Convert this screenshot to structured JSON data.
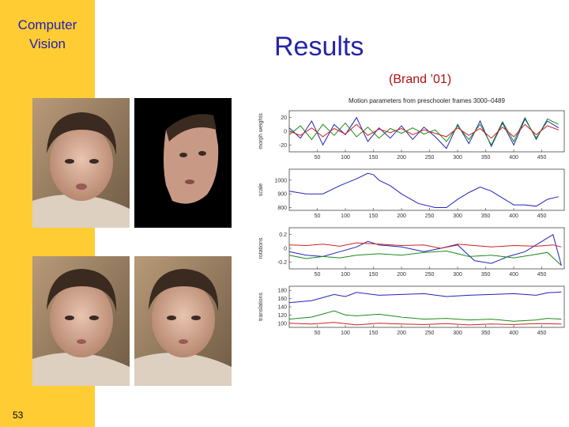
{
  "slide": {
    "course_title": "Computer\nVision",
    "title": "Results",
    "subtitle": "(Brand ’01)",
    "page_number": "53"
  },
  "colors": {
    "sidebar": "#ffcc33",
    "title": "#2424a8",
    "subtitle": "#b01010",
    "blue": "#2222bb",
    "green": "#1a8a1a",
    "red": "#cc2222"
  },
  "photos": [
    {
      "name": "face-original-top"
    },
    {
      "name": "face-masked-model"
    },
    {
      "name": "face-original-bottom"
    },
    {
      "name": "face-reconstructed"
    }
  ],
  "chart_data": [
    {
      "type": "line",
      "title": "Motion parameters from preschooler frames 3000–0489",
      "ylabel": "morph weights",
      "xlim": [
        0,
        490
      ],
      "ylim": [
        -30,
        30
      ],
      "xticks": [
        50,
        100,
        150,
        200,
        250,
        300,
        350,
        400,
        450
      ],
      "yticks": [
        20,
        0,
        -20
      ],
      "series": [
        {
          "color": "blue",
          "x": [
            0,
            20,
            40,
            60,
            80,
            100,
            120,
            140,
            160,
            180,
            200,
            220,
            240,
            260,
            280,
            300,
            320,
            340,
            360,
            380,
            400,
            420,
            440,
            460,
            480
          ],
          "y": [
            5,
            -10,
            15,
            -20,
            10,
            -5,
            20,
            -15,
            5,
            -10,
            8,
            -12,
            6,
            -8,
            -25,
            10,
            -18,
            15,
            -22,
            12,
            -20,
            18,
            -10,
            15,
            5
          ]
        },
        {
          "color": "green",
          "x": [
            0,
            20,
            40,
            60,
            80,
            100,
            120,
            140,
            160,
            180,
            200,
            220,
            240,
            260,
            280,
            300,
            320,
            340,
            360,
            380,
            400,
            420,
            440,
            460,
            480
          ],
          "y": [
            -5,
            8,
            -12,
            10,
            -6,
            12,
            -8,
            6,
            -10,
            4,
            -3,
            5,
            -4,
            2,
            -15,
            8,
            -12,
            10,
            -20,
            14,
            -15,
            20,
            -12,
            18,
            10
          ]
        },
        {
          "color": "red",
          "x": [
            0,
            20,
            40,
            60,
            80,
            100,
            120,
            140,
            160,
            180,
            200,
            220,
            240,
            260,
            280,
            300,
            320,
            340,
            360,
            380,
            400,
            420,
            440,
            460,
            480
          ],
          "y": [
            0,
            -6,
            5,
            -8,
            4,
            -4,
            10,
            -6,
            3,
            -2,
            4,
            -5,
            2,
            -3,
            -8,
            5,
            -6,
            4,
            -10,
            6,
            -8,
            10,
            -5,
            8,
            2
          ]
        }
      ]
    },
    {
      "type": "line",
      "ylabel": "scale",
      "xlim": [
        0,
        490
      ],
      "ylim": [
        780,
        1080
      ],
      "xticks": [
        50,
        100,
        150,
        200,
        250,
        300,
        350,
        400,
        450
      ],
      "yticks": [
        1000,
        900,
        800
      ],
      "series": [
        {
          "color": "blue",
          "x": [
            0,
            30,
            60,
            90,
            120,
            140,
            150,
            160,
            180,
            200,
            230,
            260,
            280,
            300,
            320,
            340,
            360,
            380,
            400,
            420,
            440,
            460,
            480
          ],
          "y": [
            920,
            900,
            900,
            960,
            1010,
            1050,
            1040,
            1000,
            960,
            900,
            830,
            800,
            800,
            860,
            910,
            950,
            920,
            870,
            820,
            820,
            810,
            860,
            880
          ]
        }
      ]
    },
    {
      "type": "line",
      "ylabel": "rotations",
      "xlim": [
        0,
        490
      ],
      "ylim": [
        -0.3,
        0.3
      ],
      "xticks": [
        50,
        100,
        150,
        200,
        250,
        300,
        350,
        400,
        450
      ],
      "yticks": [
        0.2,
        0,
        -0.2
      ],
      "series": [
        {
          "color": "blue",
          "x": [
            0,
            30,
            60,
            90,
            120,
            140,
            160,
            200,
            240,
            270,
            300,
            330,
            360,
            390,
            420,
            450,
            470,
            485
          ],
          "y": [
            -0.05,
            -0.1,
            -0.12,
            -0.05,
            0.02,
            0.1,
            0.05,
            0.02,
            -0.05,
            0,
            0.05,
            -0.18,
            -0.22,
            -0.12,
            -0.05,
            0.1,
            0.2,
            -0.25
          ]
        },
        {
          "color": "green",
          "x": [
            0,
            30,
            60,
            90,
            120,
            160,
            200,
            240,
            280,
            300,
            320,
            360,
            400,
            430,
            460,
            485
          ],
          "y": [
            -0.1,
            -0.15,
            -0.12,
            -0.14,
            -0.1,
            -0.08,
            -0.1,
            -0.06,
            -0.04,
            -0.08,
            -0.12,
            -0.1,
            -0.14,
            -0.1,
            -0.06,
            -0.25
          ]
        },
        {
          "color": "red",
          "x": [
            0,
            30,
            60,
            90,
            120,
            160,
            200,
            240,
            270,
            300,
            330,
            360,
            400,
            440,
            470,
            485
          ],
          "y": [
            0.05,
            0.04,
            0.06,
            0.03,
            0.08,
            0.06,
            0.04,
            0.05,
            0,
            0.06,
            0.04,
            0.02,
            0.04,
            0.03,
            0.05,
            0.02
          ]
        }
      ]
    },
    {
      "type": "line",
      "ylabel": "translations",
      "xlim": [
        0,
        490
      ],
      "ylim": [
        90,
        190
      ],
      "xticks": [
        50,
        100,
        150,
        200,
        250,
        300,
        350,
        400,
        450
      ],
      "yticks": [
        180,
        160,
        140,
        120,
        100
      ],
      "series": [
        {
          "color": "blue",
          "x": [
            0,
            40,
            80,
            100,
            120,
            160,
            200,
            240,
            280,
            320,
            360,
            400,
            440,
            460,
            485
          ],
          "y": [
            150,
            155,
            170,
            165,
            175,
            168,
            170,
            172,
            165,
            168,
            170,
            172,
            168,
            174,
            176
          ]
        },
        {
          "color": "green",
          "x": [
            0,
            40,
            80,
            100,
            120,
            160,
            200,
            240,
            280,
            320,
            360,
            400,
            440,
            460,
            485
          ],
          "y": [
            110,
            115,
            130,
            120,
            118,
            122,
            115,
            110,
            112,
            108,
            110,
            105,
            108,
            112,
            110
          ]
        },
        {
          "color": "red",
          "x": [
            0,
            40,
            80,
            120,
            160,
            200,
            240,
            280,
            320,
            360,
            400,
            440,
            485
          ],
          "y": [
            100,
            98,
            102,
            96,
            100,
            98,
            97,
            99,
            96,
            98,
            97,
            99,
            98
          ]
        }
      ]
    }
  ]
}
